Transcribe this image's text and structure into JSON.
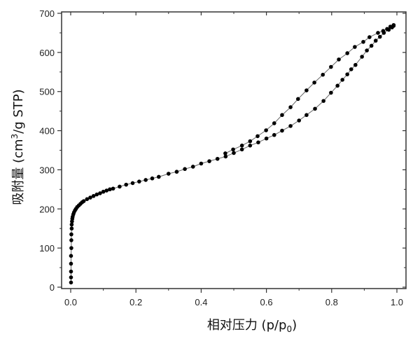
{
  "chart_data": {
    "type": "scatter",
    "xlabel": "相对压力 (p/p0)",
    "xlabel_parts": {
      "main": "相对压力 (p/p",
      "sub": "0",
      "end": ")"
    },
    "ylabel": "吸附量 (cm3/g STP)",
    "ylabel_parts": {
      "main": "吸附量 (cm",
      "sup": "3",
      "end": "/g STP)"
    },
    "xlim": [
      -0.05,
      1.03
    ],
    "ylim": [
      -15,
      725
    ],
    "xticks": [
      "0.0",
      "0.2",
      "0.4",
      "0.6",
      "0.8",
      "1.0"
    ],
    "xtick_values": [
      0,
      0.2,
      0.4,
      0.6,
      0.8,
      1.0
    ],
    "yticks": [
      "0",
      "100",
      "200",
      "300",
      "400",
      "500",
      "600",
      "700"
    ],
    "ytick_values": [
      0,
      100,
      200,
      300,
      400,
      500,
      600,
      700
    ],
    "grid": false,
    "marker_color": "#000000",
    "line_color": "#666666",
    "series": [
      {
        "x": [
          0.001,
          0.001,
          0.001,
          0.001,
          0.001,
          0.002,
          0.002,
          0.002,
          0.003,
          0.003,
          0.004,
          0.005,
          0.006,
          0.008,
          0.01,
          0.013,
          0.016,
          0.02,
          0.025,
          0.03,
          0.035,
          0.04,
          0.05,
          0.06,
          0.07,
          0.08,
          0.09,
          0.1,
          0.11,
          0.12,
          0.13,
          0.15,
          0.17,
          0.19,
          0.21,
          0.23,
          0.25,
          0.27,
          0.3,
          0.325,
          0.35,
          0.375,
          0.4,
          0.425,
          0.45,
          0.475,
          0.5,
          0.525,
          0.55,
          0.575,
          0.6,
          0.624,
          0.648,
          0.674,
          0.7,
          0.723,
          0.749,
          0.775,
          0.798,
          0.818,
          0.833,
          0.848,
          0.86,
          0.873,
          0.893,
          0.908,
          0.922,
          0.935,
          0.948,
          0.96,
          0.975,
          0.985,
          0.99
        ],
        "y": [
          12,
          25,
          40,
          60,
          80,
          100,
          120,
          135,
          150,
          160,
          168,
          175,
          180,
          186,
          191,
          196,
          200,
          205,
          209,
          213,
          217,
          220,
          225,
          229,
          233,
          237,
          240,
          244,
          247,
          250,
          252,
          257,
          262,
          266,
          270,
          274,
          278,
          282,
          290,
          295,
          302,
          308,
          316,
          322,
          328,
          334,
          343,
          352,
          362,
          370,
          380,
          389,
          400,
          412,
          426,
          440,
          456,
          476,
          497,
          515,
          530,
          544,
          557,
          568,
          589,
          605,
          617,
          630,
          640,
          650,
          658,
          664,
          668
        ]
      },
      {
        "x": [
          0.99,
          0.98,
          0.97,
          0.958,
          0.942,
          0.916,
          0.897,
          0.871,
          0.848,
          0.822,
          0.798,
          0.773,
          0.747,
          0.723,
          0.697,
          0.674,
          0.648,
          0.624,
          0.599,
          0.573,
          0.55,
          0.525,
          0.498,
          0.474
        ],
        "y": [
          670,
          666,
          660,
          655,
          650,
          639,
          627,
          614,
          598,
          582,
          563,
          543,
          523,
          503,
          481,
          460,
          440,
          419,
          401,
          386,
          373,
          362,
          352,
          342
        ]
      }
    ]
  }
}
